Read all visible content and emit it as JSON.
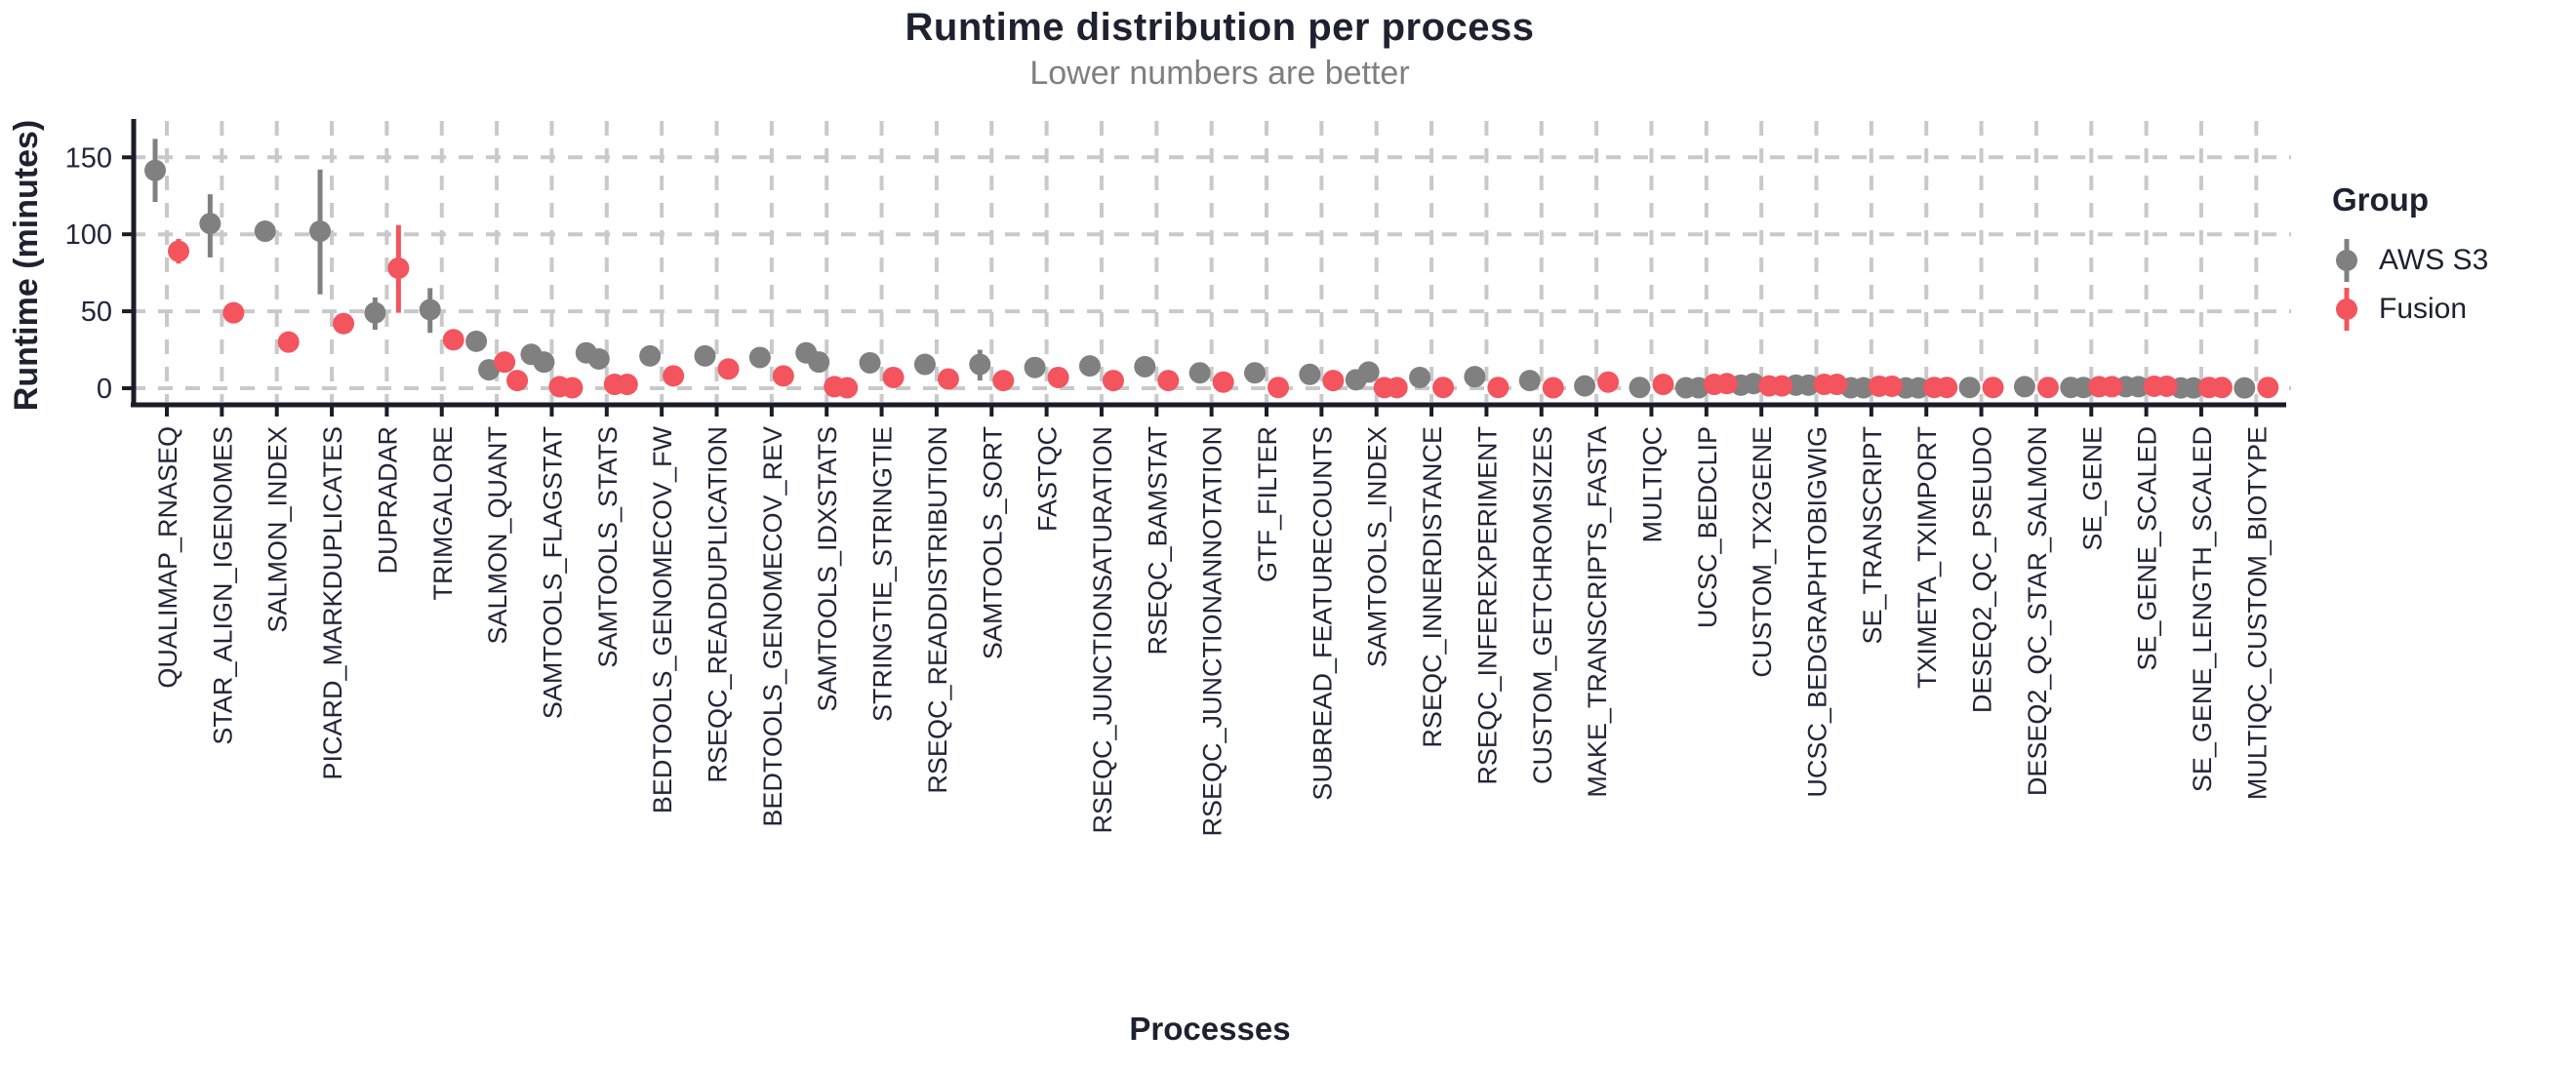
{
  "chart_data": {
    "type": "scatter",
    "title": "Runtime distribution per process",
    "subtitle": "Lower numbers are better",
    "xlabel": "Processes",
    "ylabel": "Runtime (minutes)",
    "ylim": [
      0,
      175
    ],
    "yticks": [
      0,
      50,
      100,
      150
    ],
    "grid": "dashed",
    "legend_position": "right",
    "colors": {
      "grid": "#c9c9c9",
      "axis": "#1a1c28",
      "text_dark": "#23263a",
      "subtitle": "#7f7f7f"
    },
    "categories": [
      "QUALIMAP_RNASEQ",
      "STAR_ALIGN_IGENOMES",
      "SALMON_INDEX",
      "PICARD_MARKDUPLICATES",
      "DUPRADAR",
      "TRIMGALORE",
      "SALMON_QUANT",
      "SAMTOOLS_FLAGSTAT",
      "SAMTOOLS_STATS",
      "BEDTOOLS_GENOMECOV_FW",
      "RSEQC_READDUPLICATION",
      "BEDTOOLS_GENOMECOV_REV",
      "SAMTOOLS_IDXSTATS",
      "STRINGTIE_STRINGTIE",
      "RSEQC_READDISTRIBUTION",
      "SAMTOOLS_SORT",
      "FASTQC",
      "RSEQC_JUNCTIONSATURATION",
      "RSEQC_BAMSTAT",
      "RSEQC_JUNCTIONANNOTATION",
      "GTF_FILTER",
      "SUBREAD_FEATURECOUNTS",
      "SAMTOOLS_INDEX",
      "RSEQC_INNERDISTANCE",
      "RSEQC_INFEREXPERIMENT",
      "CUSTOM_GETCHROMSIZES",
      "MAKE_TRANSCRIPTS_FASTA",
      "MULTIQC",
      "UCSC_BEDCLIP",
      "CUSTOM_TX2GENE",
      "UCSC_BEDGRAPHTOBIGWIG",
      "SE_TRANSCRIPT",
      "TXIMETA_TXIMPORT",
      "DESEQ2_QC_PSEUDO",
      "DESEQ2_QC_STAR_SALMON",
      "SE_GENE",
      "SE_GENE_SCALED",
      "SE_GENE_LENGTH_SCALED",
      "MULTIQC_CUSTOM_BIOTYPE"
    ],
    "series": [
      {
        "name": "AWS S3",
        "color": "#808080",
        "points": [
          {
            "values": [
              141.5
            ],
            "err": [
              121,
              162
            ]
          },
          {
            "values": [
              107
            ],
            "err": [
              85,
              126
            ]
          },
          {
            "values": [
              102
            ],
            "err": null
          },
          {
            "values": [
              102
            ],
            "err": [
              61,
              142
            ]
          },
          {
            "values": [
              49
            ],
            "err": [
              38,
              59
            ]
          },
          {
            "values": [
              51
            ],
            "err": [
              36,
              65
            ]
          },
          {
            "values": [
              30.5,
              12
            ],
            "err": null
          },
          {
            "values": [
              22,
              17
            ],
            "err": null
          },
          {
            "values": [
              23,
              19
            ],
            "err": null
          },
          {
            "values": [
              21
            ],
            "err": null
          },
          {
            "values": [
              21
            ],
            "err": null
          },
          {
            "values": [
              20
            ],
            "err": null
          },
          {
            "values": [
              23,
              17
            ],
            "err": null
          },
          {
            "values": [
              16.5
            ],
            "err": null
          },
          {
            "values": [
              15.5
            ],
            "err": null
          },
          {
            "values": [
              15.5
            ],
            "err": [
              5,
              25
            ]
          },
          {
            "values": [
              13.5
            ],
            "err": null
          },
          {
            "values": [
              14.5
            ],
            "err": null
          },
          {
            "values": [
              14
            ],
            "err": null
          },
          {
            "values": [
              10
            ],
            "err": null
          },
          {
            "values": [
              10
            ],
            "err": null
          },
          {
            "values": [
              9
            ],
            "err": null
          },
          {
            "values": [
              5.5,
              10.5
            ],
            "err": null
          },
          {
            "values": [
              7
            ],
            "err": null
          },
          {
            "values": [
              7.5
            ],
            "err": null
          },
          {
            "values": [
              5
            ],
            "err": null
          },
          {
            "values": [
              1.5
            ],
            "err": null
          },
          {
            "values": [
              0.5
            ],
            "err": null
          },
          {
            "values": [
              0.3,
              0.3
            ],
            "err": null
          },
          {
            "values": [
              2,
              3
            ],
            "err": null
          },
          {
            "values": [
              2,
              2
            ],
            "err": null
          },
          {
            "values": [
              0.3,
              0.3
            ],
            "err": null
          },
          {
            "values": [
              0.2,
              0.2
            ],
            "err": null
          },
          {
            "values": [
              0.5
            ],
            "err": null
          },
          {
            "values": [
              1
            ],
            "err": null
          },
          {
            "values": [
              0.5,
              0.5
            ],
            "err": null
          },
          {
            "values": [
              1,
              1
            ],
            "err": null
          },
          {
            "values": [
              0.2,
              0.2
            ],
            "err": null
          },
          {
            "values": [
              0.2
            ],
            "err": null
          }
        ]
      },
      {
        "name": "Fusion",
        "color": "#f3545d",
        "points": [
          {
            "values": [
              89
            ],
            "err": [
              81,
              97
            ]
          },
          {
            "values": [
              49
            ],
            "err": null
          },
          {
            "values": [
              30
            ],
            "err": null
          },
          {
            "values": [
              42
            ],
            "err": null
          },
          {
            "values": [
              78
            ],
            "err": [
              49,
              106
            ]
          },
          {
            "values": [
              31.5
            ],
            "err": null
          },
          {
            "values": [
              17,
              5
            ],
            "err": null
          },
          {
            "values": [
              1,
              0.3
            ],
            "err": null
          },
          {
            "values": [
              2.5,
              2.5
            ],
            "err": null
          },
          {
            "values": [
              8
            ],
            "err": null
          },
          {
            "values": [
              12.5
            ],
            "err": null
          },
          {
            "values": [
              8
            ],
            "err": null
          },
          {
            "values": [
              1,
              0.3
            ],
            "err": null
          },
          {
            "values": [
              7
            ],
            "err": null
          },
          {
            "values": [
              6
            ],
            "err": null
          },
          {
            "values": [
              5
            ],
            "err": null
          },
          {
            "values": [
              7
            ],
            "err": null
          },
          {
            "values": [
              5
            ],
            "err": null
          },
          {
            "values": [
              5
            ],
            "err": null
          },
          {
            "values": [
              4
            ],
            "err": null
          },
          {
            "values": [
              0.5
            ],
            "err": null
          },
          {
            "values": [
              5
            ],
            "err": null
          },
          {
            "values": [
              0.4,
              0.4
            ],
            "err": null
          },
          {
            "values": [
              0.5
            ],
            "err": null
          },
          {
            "values": [
              0.5
            ],
            "err": null
          },
          {
            "values": [
              0.3
            ],
            "err": null
          },
          {
            "values": [
              4
            ],
            "err": null
          },
          {
            "values": [
              2.5
            ],
            "err": null
          },
          {
            "values": [
              2.5,
              3
            ],
            "err": null
          },
          {
            "values": [
              1.5,
              1.5
            ],
            "err": null
          },
          {
            "values": [
              2.5,
              2.5
            ],
            "err": null
          },
          {
            "values": [
              1.3,
              1.3
            ],
            "err": null
          },
          {
            "values": [
              0.5,
              0.5
            ],
            "err": null
          },
          {
            "values": [
              0.5
            ],
            "err": null
          },
          {
            "values": [
              0.5
            ],
            "err": null
          },
          {
            "values": [
              1,
              1
            ],
            "err": null
          },
          {
            "values": [
              1.3,
              1.3
            ],
            "err": null
          },
          {
            "values": [
              0.5,
              0.5
            ],
            "err": null
          },
          {
            "values": [
              0.5
            ],
            "err": null
          }
        ]
      }
    ]
  },
  "legend": {
    "title": "Group",
    "items": [
      {
        "label": "AWS S3",
        "color": "#808080"
      },
      {
        "label": "Fusion",
        "color": "#f3545d"
      }
    ]
  }
}
